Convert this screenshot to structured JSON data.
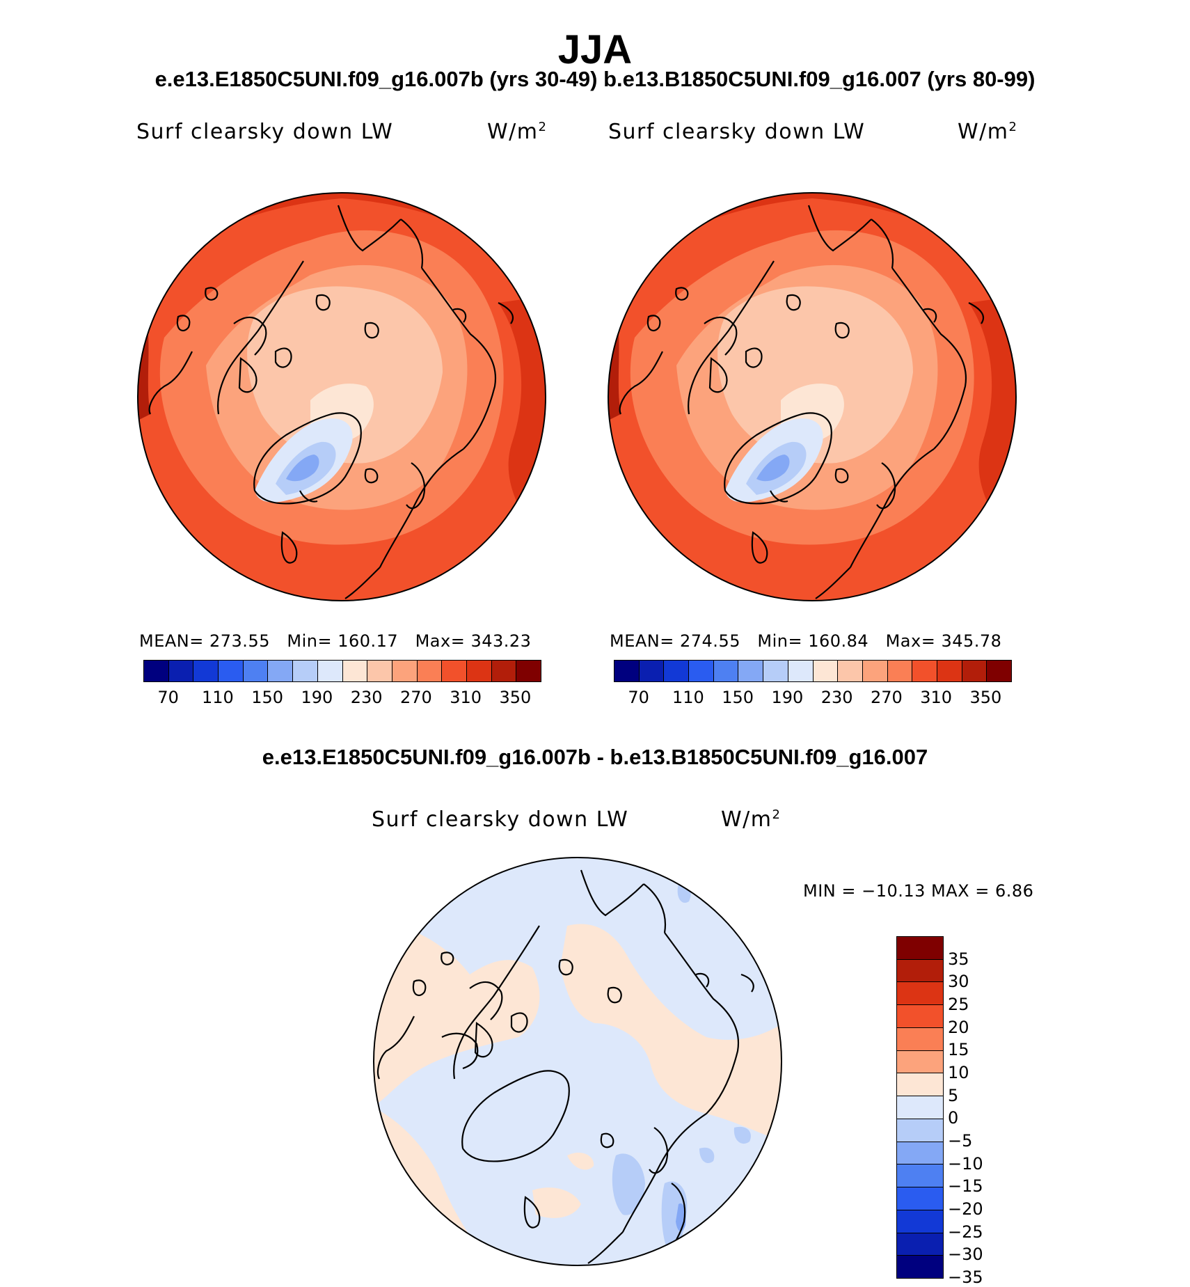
{
  "title": "JJA",
  "subtitle": "e.e13.E1850C5UNI.f09_g16.007b (yrs 30-49)  b.e13.B1850C5UNI.f09_g16.007 (yrs 80-99)",
  "diff_title": "e.e13.E1850C5UNI.f09_g16.007b - b.e13.B1850C5UNI.f09_g16.007",
  "panels": [
    {
      "variable": "Surf clearsky down LW",
      "units": "W/m",
      "units_sup": "2",
      "mean_label": "MEAN=",
      "mean": "273.55",
      "min_label": "Min=",
      "min": "160.17",
      "max_label": "Max=",
      "max": "343.23"
    },
    {
      "variable": "Surf clearsky down LW",
      "units": "W/m",
      "units_sup": "2",
      "mean_label": "MEAN=",
      "mean": "274.55",
      "min_label": "Min=",
      "min": "160.84",
      "max_label": "Max=",
      "max": "345.78"
    }
  ],
  "diff_panel": {
    "variable": "Surf clearsky down LW",
    "units": "W/m",
    "units_sup": "2",
    "minmax": "MIN = −10.13 MAX =    6.86"
  },
  "abs_colorbar": {
    "colors": [
      "#00007f",
      "#0a1fb0",
      "#1239d6",
      "#2a5cf0",
      "#4e80f2",
      "#84a8f5",
      "#b6cdf8",
      "#dde8fb",
      "#fde6d5",
      "#fcc6aa",
      "#fca37c",
      "#fa7f55",
      "#f2512b",
      "#dc3414",
      "#b21e0a",
      "#7f0000"
    ],
    "ticks": [
      "70",
      "110",
      "150",
      "190",
      "230",
      "270",
      "310",
      "350"
    ]
  },
  "diff_colorbar": {
    "colors": [
      "#7f0000",
      "#b21e0a",
      "#dc3414",
      "#f2512b",
      "#fa7f55",
      "#fca37c",
      "#fde6d5",
      "#dde8fb",
      "#b6cdf8",
      "#84a8f5",
      "#4e80f2",
      "#2a5cf0",
      "#1239d6",
      "#0a1fb0",
      "#00007f"
    ],
    "ticks": [
      "35",
      "30",
      "25",
      "20",
      "15",
      "10",
      "5",
      "0",
      "−5",
      "−10",
      "−15",
      "−20",
      "−25",
      "−30",
      "−35"
    ]
  }
}
